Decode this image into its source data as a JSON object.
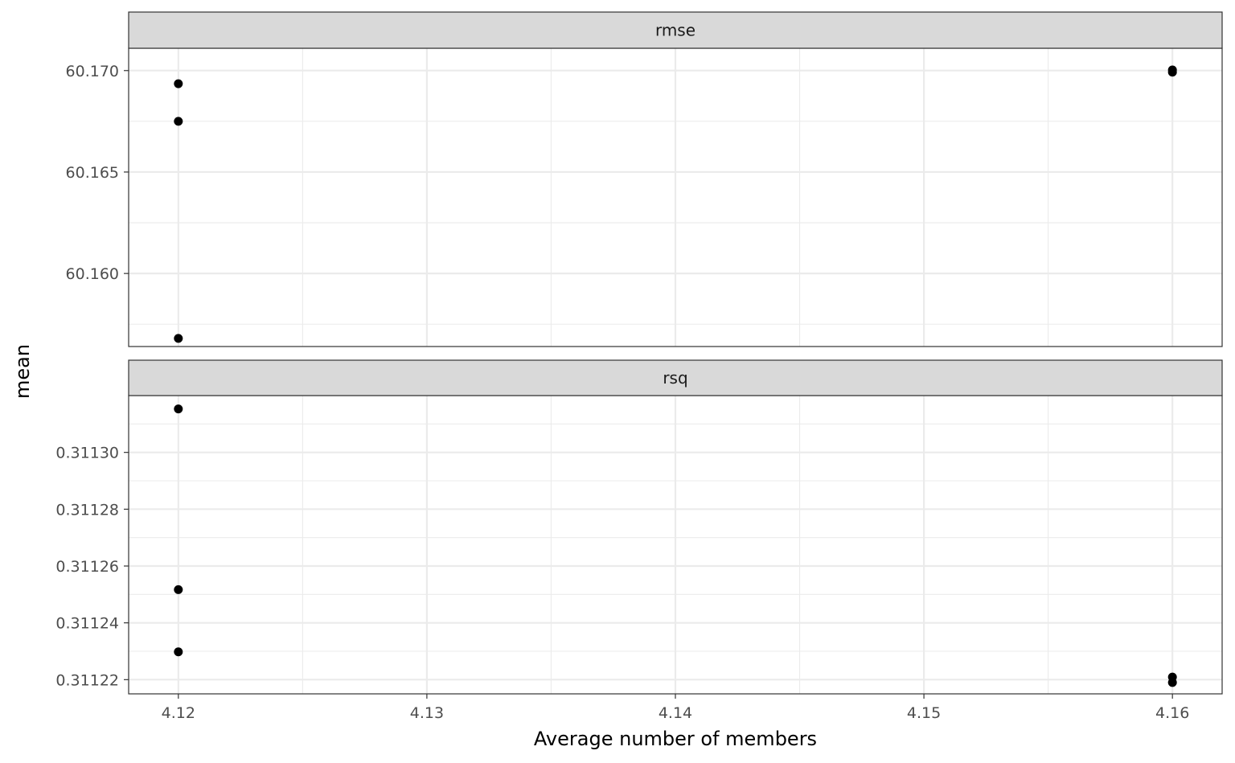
{
  "chart_data": {
    "type": "scatter",
    "xlabel": "Average number of members",
    "ylabel": "mean",
    "xlim": [
      4.118,
      4.162
    ],
    "x_ticks": [
      "4.12",
      "4.13",
      "4.14",
      "4.15",
      "4.16"
    ],
    "x_tick_values": [
      4.12,
      4.13,
      4.14,
      4.15,
      4.16
    ],
    "grid": true,
    "colors": {
      "points": "#000000",
      "strip_fill": "#d9d9d9",
      "border": "#333333",
      "grid": "#ebebeb"
    },
    "facets": [
      {
        "label": "rmse",
        "ylim": [
          60.1564,
          60.1711
        ],
        "y_ticks": [
          "60.160",
          "60.165",
          "60.170"
        ],
        "y_tick_values": [
          60.16,
          60.165,
          60.17
        ],
        "points": [
          {
            "x": 4.12,
            "y": 60.16935
          },
          {
            "x": 4.12,
            "y": 60.1675
          },
          {
            "x": 4.12,
            "y": 60.1568
          },
          {
            "x": 4.16,
            "y": 60.17003
          },
          {
            "x": 4.16,
            "y": 60.16992
          }
        ]
      },
      {
        "label": "rsq",
        "ylim": [
          0.311215,
          0.31132
        ],
        "y_ticks": [
          "0.31122",
          "0.31124",
          "0.31126",
          "0.31128",
          "0.31130"
        ],
        "y_tick_values": [
          0.31122,
          0.31124,
          0.31126,
          0.31128,
          0.3113
        ],
        "points": [
          {
            "x": 4.12,
            "y": 0.3113153
          },
          {
            "x": 4.12,
            "y": 0.3112517
          },
          {
            "x": 4.12,
            "y": 0.3112298
          },
          {
            "x": 4.16,
            "y": 0.3112209
          },
          {
            "x": 4.16,
            "y": 0.311219
          }
        ]
      }
    ]
  }
}
